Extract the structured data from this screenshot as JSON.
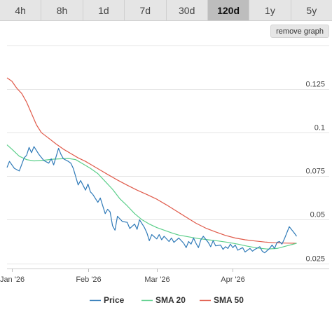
{
  "tabs": [
    {
      "label": "4h",
      "active": false
    },
    {
      "label": "8h",
      "active": false
    },
    {
      "label": "1d",
      "active": false
    },
    {
      "label": "7d",
      "active": false
    },
    {
      "label": "30d",
      "active": false
    },
    {
      "label": "120d",
      "active": true
    },
    {
      "label": "1y",
      "active": false
    },
    {
      "label": "5y",
      "active": false
    }
  ],
  "remove_graph_label": "remove graph",
  "chart_data": {
    "type": "line",
    "title": "",
    "xlabel": "",
    "ylabel": "",
    "ylim": [
      0.022,
      0.15
    ],
    "yaxis_side": "right",
    "grid": "horizontal",
    "legend_position": "bottom",
    "yticks": [
      {
        "value": 0.025,
        "label": "0.025"
      },
      {
        "value": 0.05,
        "label": "0.05"
      },
      {
        "value": 0.075,
        "label": "0.075"
      },
      {
        "value": 0.1,
        "label": "0.1"
      },
      {
        "value": 0.125,
        "label": "0.125"
      }
    ],
    "xlim": [
      "2025-12-30",
      "2026-04-30"
    ],
    "xticks": [
      {
        "value": "2026-01-01",
        "label": "Jan '26"
      },
      {
        "value": "2026-02-01",
        "label": "Feb '26"
      },
      {
        "value": "2026-03-01",
        "label": "Mar '26"
      },
      {
        "value": "2026-04-01",
        "label": "Apr '26"
      }
    ],
    "series": [
      {
        "name": "Price",
        "color": "#2f7ab8",
        "points": [
          [
            "2025-12-30",
            0.08
          ],
          [
            "2025-12-31",
            0.0835
          ],
          [
            "2026-01-02",
            0.0795
          ],
          [
            "2026-01-04",
            0.078
          ],
          [
            "2026-01-06",
            0.0855
          ],
          [
            "2026-01-07",
            0.087
          ],
          [
            "2026-01-08",
            0.0915
          ],
          [
            "2026-01-09",
            0.0885
          ],
          [
            "2026-01-10",
            0.092
          ],
          [
            "2026-01-12",
            0.0875
          ],
          [
            "2026-01-14",
            0.084
          ],
          [
            "2026-01-16",
            0.0825
          ],
          [
            "2026-01-17",
            0.085
          ],
          [
            "2026-01-18",
            0.0815
          ],
          [
            "2026-01-20",
            0.091
          ],
          [
            "2026-01-21",
            0.0875
          ],
          [
            "2026-01-22",
            0.085
          ],
          [
            "2026-01-24",
            0.0835
          ],
          [
            "2026-01-25",
            0.0825
          ],
          [
            "2026-01-26",
            0.0795
          ],
          [
            "2026-01-28",
            0.07
          ],
          [
            "2026-01-29",
            0.0725
          ],
          [
            "2026-01-31",
            0.067
          ],
          [
            "2026-02-01",
            0.0705
          ],
          [
            "2026-02-02",
            0.066
          ],
          [
            "2026-02-03",
            0.0645
          ],
          [
            "2026-02-05",
            0.06
          ],
          [
            "2026-02-06",
            0.0625
          ],
          [
            "2026-02-07",
            0.058
          ],
          [
            "2026-02-08",
            0.0535
          ],
          [
            "2026-02-09",
            0.056
          ],
          [
            "2026-02-10",
            0.0545
          ],
          [
            "2026-02-11",
            0.0465
          ],
          [
            "2026-02-12",
            0.044
          ],
          [
            "2026-02-13",
            0.052
          ],
          [
            "2026-02-15",
            0.049
          ],
          [
            "2026-02-17",
            0.0485
          ],
          [
            "2026-02-18",
            0.045
          ],
          [
            "2026-02-20",
            0.0475
          ],
          [
            "2026-02-21",
            0.0445
          ],
          [
            "2026-02-22",
            0.05
          ],
          [
            "2026-02-24",
            0.0455
          ],
          [
            "2026-02-25",
            0.0425
          ],
          [
            "2026-02-26",
            0.038
          ],
          [
            "2026-02-27",
            0.0415
          ],
          [
            "2026-03-01",
            0.039
          ],
          [
            "2026-03-02",
            0.0415
          ],
          [
            "2026-03-03",
            0.0385
          ],
          [
            "2026-03-04",
            0.0405
          ],
          [
            "2026-03-06",
            0.0375
          ],
          [
            "2026-03-07",
            0.0395
          ],
          [
            "2026-03-08",
            0.037
          ],
          [
            "2026-03-10",
            0.0395
          ],
          [
            "2026-03-12",
            0.0365
          ],
          [
            "2026-03-13",
            0.034
          ],
          [
            "2026-03-14",
            0.0375
          ],
          [
            "2026-03-15",
            0.036
          ],
          [
            "2026-03-16",
            0.0395
          ],
          [
            "2026-03-17",
            0.0365
          ],
          [
            "2026-03-18",
            0.034
          ],
          [
            "2026-03-19",
            0.0385
          ],
          [
            "2026-03-20",
            0.0405
          ],
          [
            "2026-03-22",
            0.037
          ],
          [
            "2026-03-23",
            0.0345
          ],
          [
            "2026-03-24",
            0.038
          ],
          [
            "2026-03-25",
            0.035
          ],
          [
            "2026-03-27",
            0.0355
          ],
          [
            "2026-03-28",
            0.033
          ],
          [
            "2026-03-29",
            0.0345
          ],
          [
            "2026-03-30",
            0.0335
          ],
          [
            "2026-03-31",
            0.036
          ],
          [
            "2026-04-01",
            0.034
          ],
          [
            "2026-04-02",
            0.0355
          ],
          [
            "2026-04-03",
            0.0325
          ],
          [
            "2026-04-05",
            0.034
          ],
          [
            "2026-04-06",
            0.0315
          ],
          [
            "2026-04-08",
            0.0335
          ],
          [
            "2026-04-09",
            0.032
          ],
          [
            "2026-04-10",
            0.033
          ],
          [
            "2026-04-12",
            0.0345
          ],
          [
            "2026-04-13",
            0.032
          ],
          [
            "2026-04-14",
            0.031
          ],
          [
            "2026-04-16",
            0.0335
          ],
          [
            "2026-04-17",
            0.0355
          ],
          [
            "2026-04-18",
            0.0335
          ],
          [
            "2026-04-19",
            0.037
          ],
          [
            "2026-04-20",
            0.0375
          ],
          [
            "2026-04-21",
            0.036
          ],
          [
            "2026-04-22",
            0.039
          ],
          [
            "2026-04-24",
            0.046
          ],
          [
            "2026-04-26",
            0.0425
          ],
          [
            "2026-04-27",
            0.0405
          ]
        ]
      },
      {
        "name": "SMA 20",
        "color": "#5bcf8a",
        "points": [
          [
            "2025-12-30",
            0.093
          ],
          [
            "2026-01-01",
            0.0905
          ],
          [
            "2026-01-04",
            0.0865
          ],
          [
            "2026-01-07",
            0.0845
          ],
          [
            "2026-01-10",
            0.0838
          ],
          [
            "2026-01-14",
            0.0842
          ],
          [
            "2026-01-18",
            0.0848
          ],
          [
            "2026-01-21",
            0.085
          ],
          [
            "2026-01-24",
            0.0852
          ],
          [
            "2026-01-27",
            0.0845
          ],
          [
            "2026-01-30",
            0.082
          ],
          [
            "2026-02-02",
            0.0795
          ],
          [
            "2026-02-05",
            0.0765
          ],
          [
            "2026-02-08",
            0.072
          ],
          [
            "2026-02-11",
            0.0675
          ],
          [
            "2026-02-14",
            0.062
          ],
          [
            "2026-02-17",
            0.058
          ],
          [
            "2026-02-20",
            0.0535
          ],
          [
            "2026-02-23",
            0.05
          ],
          [
            "2026-02-26",
            0.0475
          ],
          [
            "2026-03-01",
            0.0455
          ],
          [
            "2026-03-04",
            0.044
          ],
          [
            "2026-03-07",
            0.0425
          ],
          [
            "2026-03-10",
            0.0412
          ],
          [
            "2026-03-14",
            0.0402
          ],
          [
            "2026-03-18",
            0.0392
          ],
          [
            "2026-03-22",
            0.0385
          ],
          [
            "2026-03-26",
            0.0378
          ],
          [
            "2026-03-30",
            0.037
          ],
          [
            "2026-04-03",
            0.036
          ],
          [
            "2026-04-07",
            0.0348
          ],
          [
            "2026-04-11",
            0.0338
          ],
          [
            "2026-04-15",
            0.0332
          ],
          [
            "2026-04-19",
            0.0335
          ],
          [
            "2026-04-23",
            0.035
          ],
          [
            "2026-04-27",
            0.0365
          ]
        ]
      },
      {
        "name": "SMA 50",
        "color": "#e05a4a",
        "points": [
          [
            "2025-12-30",
            0.1315
          ],
          [
            "2026-01-01",
            0.1295
          ],
          [
            "2026-01-03",
            0.1255
          ],
          [
            "2026-01-05",
            0.1225
          ],
          [
            "2026-01-07",
            0.1175
          ],
          [
            "2026-01-09",
            0.111
          ],
          [
            "2026-01-11",
            0.1045
          ],
          [
            "2026-01-13",
            0.1
          ],
          [
            "2026-01-16",
            0.0968
          ],
          [
            "2026-01-19",
            0.0935
          ],
          [
            "2026-01-22",
            0.0905
          ],
          [
            "2026-01-25",
            0.088
          ],
          [
            "2026-01-28",
            0.0855
          ],
          [
            "2026-01-31",
            0.0835
          ],
          [
            "2026-02-03",
            0.081
          ],
          [
            "2026-02-06",
            0.0785
          ],
          [
            "2026-02-09",
            0.076
          ],
          [
            "2026-02-13",
            0.0728
          ],
          [
            "2026-02-17",
            0.0698
          ],
          [
            "2026-02-21",
            0.067
          ],
          [
            "2026-02-25",
            0.0645
          ],
          [
            "2026-03-01",
            0.0618
          ],
          [
            "2026-03-05",
            0.0585
          ],
          [
            "2026-03-09",
            0.055
          ],
          [
            "2026-03-13",
            0.0515
          ],
          [
            "2026-03-17",
            0.048
          ],
          [
            "2026-03-21",
            0.0452
          ],
          [
            "2026-03-25",
            0.043
          ],
          [
            "2026-03-29",
            0.041
          ],
          [
            "2026-04-02",
            0.0395
          ],
          [
            "2026-04-06",
            0.0385
          ],
          [
            "2026-04-10",
            0.0378
          ],
          [
            "2026-04-14",
            0.0372
          ],
          [
            "2026-04-18",
            0.0368
          ],
          [
            "2026-04-22",
            0.0366
          ],
          [
            "2026-04-27",
            0.0365
          ]
        ]
      }
    ]
  }
}
